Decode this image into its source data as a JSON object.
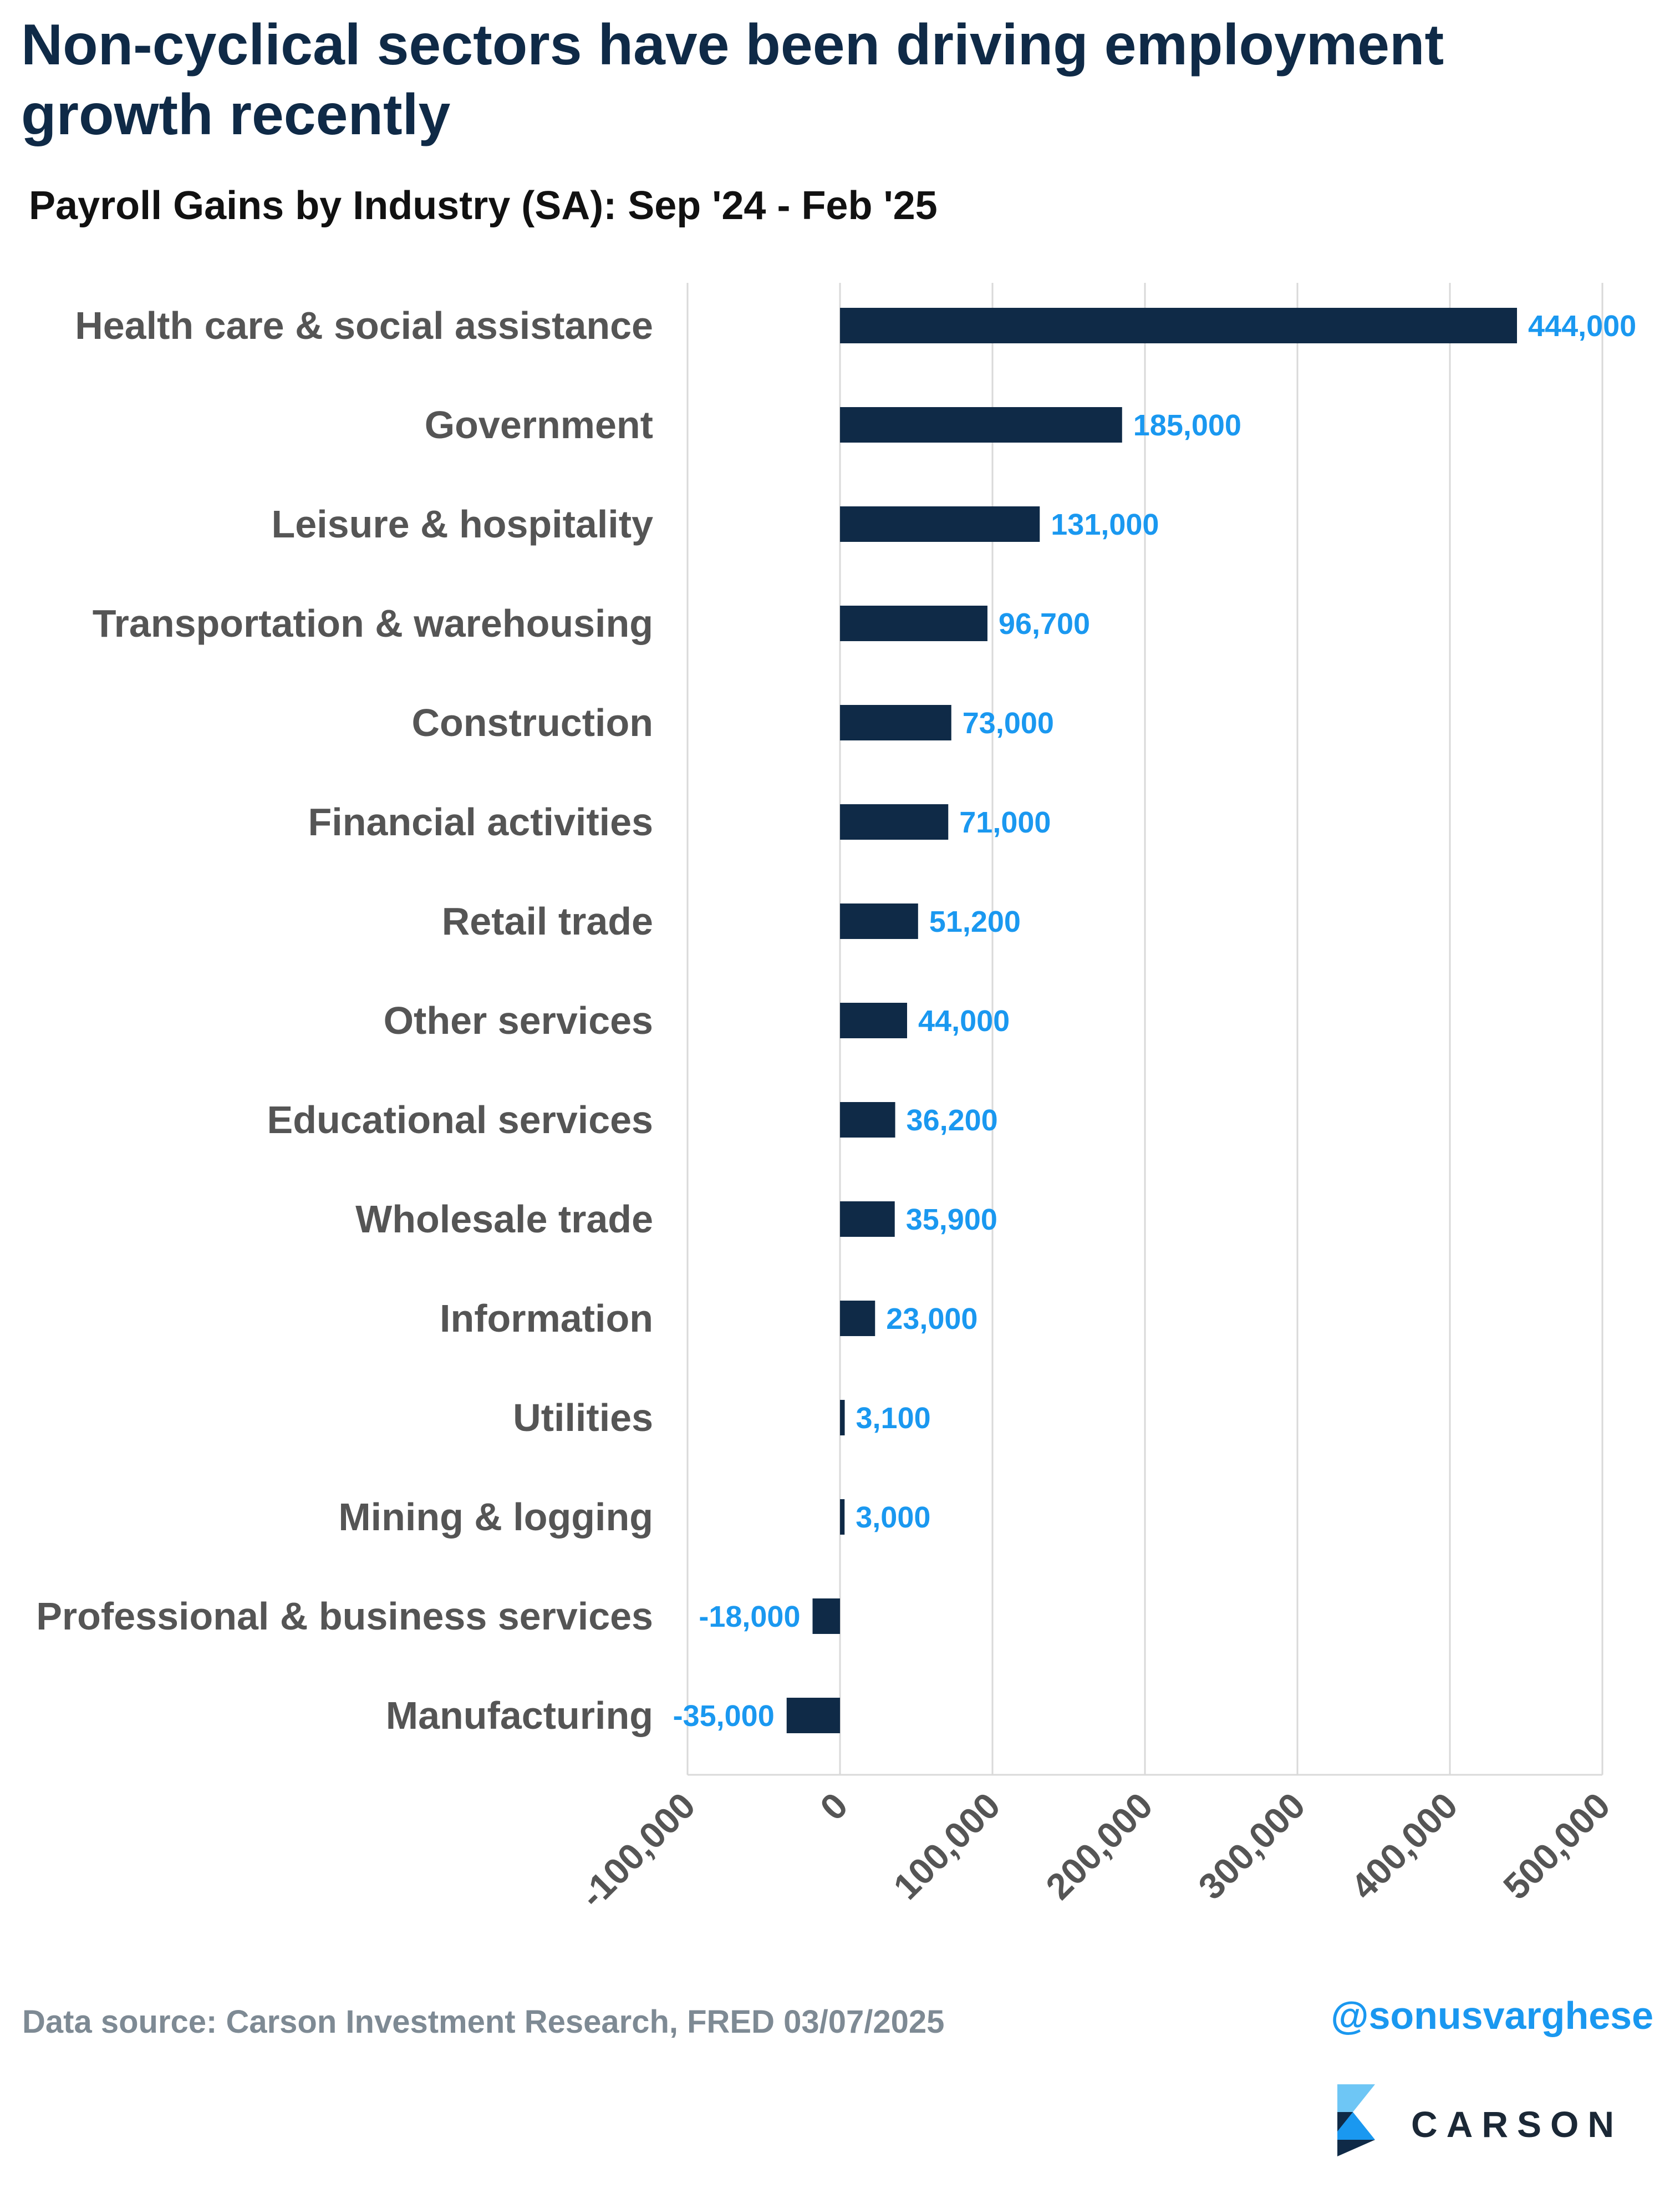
{
  "header": {
    "title": "Non-cyclical sectors have been driving employment growth recently",
    "subtitle": "Payroll Gains by Industry (SA): Sep '24 - Feb '25"
  },
  "footer": {
    "source": "Data source: Carson Investment Research, FRED   03/07/2025",
    "handle": "@sonusvarghese",
    "logo_text": "CARSON"
  },
  "colors": {
    "bar": "#0f2a47",
    "value_label": "#1a98f0",
    "category_label": "#555555",
    "grid": "#d9d9d9"
  },
  "chart_data": {
    "type": "bar",
    "orientation": "horizontal",
    "categories": [
      "Health care & social assistance",
      "Government",
      "Leisure & hospitality",
      "Transportation & warehousing",
      "Construction",
      "Financial activities",
      "Retail trade",
      "Other services",
      "Educational services",
      "Wholesale trade",
      "Information",
      "Utilities",
      "Mining & logging",
      "Professional & business services",
      "Manufacturing"
    ],
    "values": [
      444000,
      185000,
      131000,
      96700,
      73000,
      71000,
      51200,
      44000,
      36200,
      35900,
      23000,
      3100,
      3000,
      -18000,
      -35000
    ],
    "value_labels": [
      "444,000",
      "185,000",
      "131,000",
      "96,700",
      "73,000",
      "71,000",
      "51,200",
      "44,000",
      "36,200",
      "35,900",
      "23,000",
      "3,100",
      "3,000",
      "-18,000",
      "-35,000"
    ],
    "xlim": [
      -100000,
      500000
    ],
    "xticks": [
      -100000,
      0,
      100000,
      200000,
      300000,
      400000,
      500000
    ],
    "xtick_labels": [
      "-100,000",
      "0",
      "100,000",
      "200,000",
      "300,000",
      "400,000",
      "500,000"
    ],
    "grid": true,
    "legend": false
  }
}
